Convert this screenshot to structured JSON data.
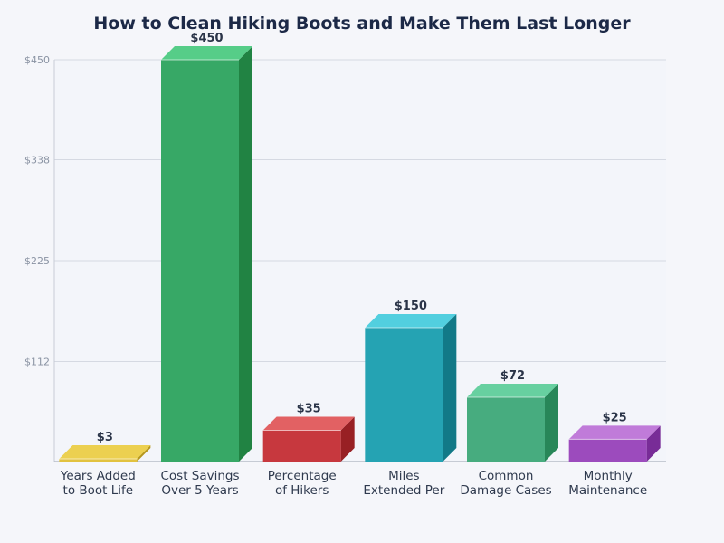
{
  "chart_data": {
    "type": "bar",
    "title": "How to Clean Hiking Boots and Make Them Last Longer",
    "categories": [
      [
        "Years Added",
        "to Boot Life"
      ],
      [
        "Cost Savings",
        "Over 5 Years"
      ],
      [
        "Percentage",
        "of Hikers"
      ],
      [
        "Miles",
        "Extended Per"
      ],
      [
        "Common",
        "Damage Cases"
      ],
      [
        "Monthly",
        "Maintenance"
      ]
    ],
    "values": [
      3,
      450,
      35,
      150,
      72,
      25
    ],
    "data_labels": [
      "$3",
      "$450",
      "$35",
      "$150",
      "$72",
      "$25"
    ],
    "ylim": [
      0,
      450
    ],
    "yticks": [
      0,
      112,
      225,
      338,
      450
    ],
    "ytick_labels": [
      "",
      "$112",
      "$225",
      "$338",
      "$450"
    ],
    "grid": true,
    "colors": [
      {
        "front": "#e2c23f",
        "top": "#ecd050",
        "side": "#b5961c"
      },
      {
        "front": "#37a866",
        "top": "#56cd88",
        "side": "#218343"
      },
      {
        "front": "#c7383e",
        "top": "#e26163",
        "side": "#982024"
      },
      {
        "front": "#25a3b3",
        "top": "#52cfdf",
        "side": "#127987"
      },
      {
        "front": "#47ac7f",
        "top": "#67d0a0",
        "side": "#288759"
      },
      {
        "front": "#9c4bbd",
        "top": "#c07bd9",
        "side": "#782c97"
      }
    ]
  }
}
